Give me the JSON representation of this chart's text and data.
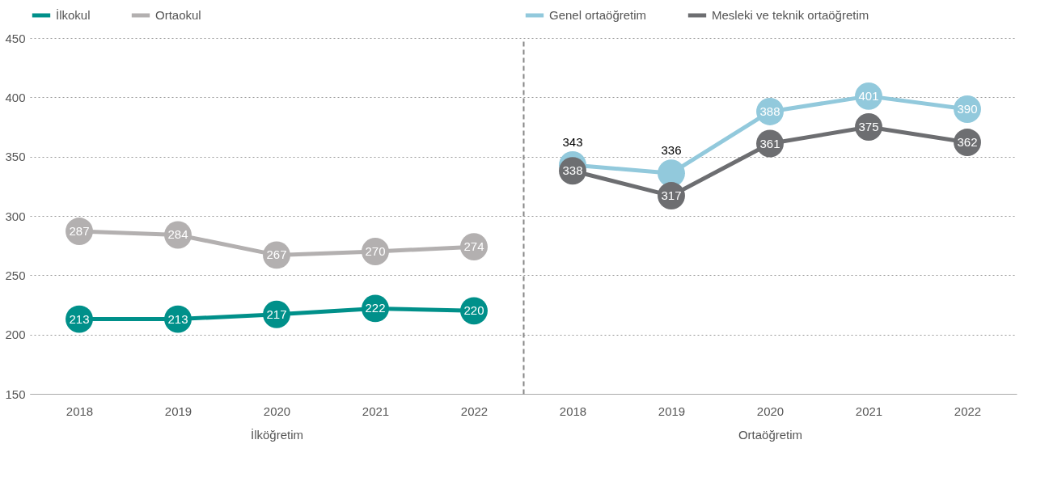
{
  "chart_data": [
    {
      "type": "line",
      "categories": [
        "2018",
        "2019",
        "2020",
        "2021",
        "2022"
      ],
      "xlabel": "İlköğretim",
      "series": [
        {
          "name": "İlkokul",
          "color": "#00908a",
          "values": [
            213,
            213,
            217,
            222,
            220
          ]
        },
        {
          "name": "Ortaokul",
          "color": "#b3b0b0",
          "values": [
            287,
            284,
            267,
            270,
            274
          ]
        }
      ],
      "ylim": [
        150,
        450
      ],
      "yticks": [
        150,
        200,
        250,
        300,
        350,
        400,
        450
      ],
      "grid": "y",
      "legend": "top",
      "marker": "circle",
      "line_style": "solid",
      "data_labels": true
    },
    {
      "type": "line",
      "categories": [
        "2018",
        "2019",
        "2020",
        "2021",
        "2022"
      ],
      "xlabel": "Ortaöğretim",
      "series": [
        {
          "name": "Genel ortaöğretim",
          "color": "#92c9dc",
          "values": [
            343,
            336,
            388,
            401,
            390
          ]
        },
        {
          "name": "Mesleki ve teknik ortaöğretim",
          "color": "#6d6e71",
          "values": [
            338,
            317,
            361,
            375,
            362
          ]
        }
      ],
      "ylim": [
        150,
        450
      ],
      "yticks": [
        150,
        200,
        250,
        300,
        350,
        400,
        450
      ],
      "grid": "y",
      "legend": "top",
      "marker": "circle",
      "line_style": "solid",
      "data_labels": true,
      "tick_labels": "x"
    }
  ]
}
